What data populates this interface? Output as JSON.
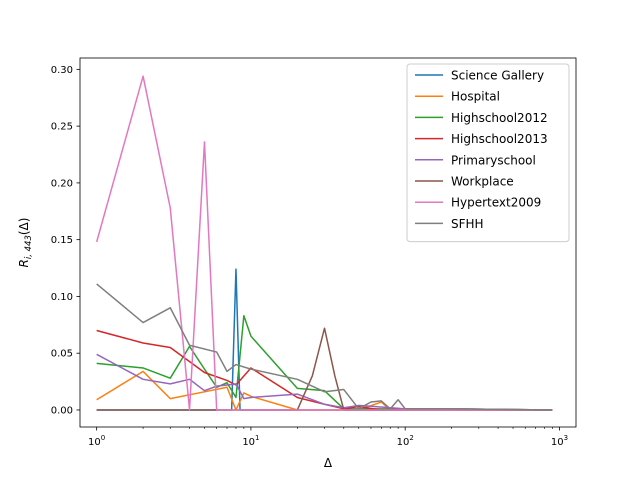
{
  "chart_data": {
    "type": "line",
    "title": "",
    "xlabel": "Δ",
    "ylabel": "R",
    "ylabel_subscript": "i, 443",
    "ylabel_suffix": "(Δ)",
    "xscale": "log",
    "xlim": [
      0.78,
      1280
    ],
    "ylim": [
      -0.015,
      0.31
    ],
    "grid": false,
    "legend_placement": "upper right",
    "x_ticks": [
      {
        "value": 1,
        "base": "10",
        "exp": "0"
      },
      {
        "value": 10,
        "base": "10",
        "exp": "1"
      },
      {
        "value": 100,
        "base": "10",
        "exp": "2"
      },
      {
        "value": 1000,
        "base": "10",
        "exp": "3"
      }
    ],
    "y_ticks": [
      {
        "value": 0.0,
        "label": "0.00"
      },
      {
        "value": 0.05,
        "label": "0.05"
      },
      {
        "value": 0.1,
        "label": "0.10"
      },
      {
        "value": 0.15,
        "label": "0.15"
      },
      {
        "value": 0.2,
        "label": "0.20"
      },
      {
        "value": 0.25,
        "label": "0.25"
      },
      {
        "value": 0.3,
        "label": "0.30"
      }
    ],
    "series": [
      {
        "name": "Science Gallery",
        "color": "#1f77b4",
        "x": [
          1,
          2,
          3,
          5,
          7,
          7.5,
          8,
          8.5,
          10,
          20,
          50,
          100,
          200,
          900
        ],
        "y": [
          0,
          0,
          0,
          0,
          0,
          0,
          0.124,
          0,
          0,
          0,
          0,
          0,
          0,
          0
        ]
      },
      {
        "name": "Hospital",
        "color": "#ff7f0e",
        "x": [
          1,
          2,
          3,
          5,
          7,
          8,
          9,
          10,
          20,
          50,
          70,
          80,
          100,
          200,
          900
        ],
        "y": [
          0.009,
          0.034,
          0.01,
          0.016,
          0.02,
          0.0,
          0.015,
          0.012,
          0.0,
          0.0,
          0.007,
          0.0,
          0.0,
          0.0,
          0.0
        ]
      },
      {
        "name": "Highschool2012",
        "color": "#2ca02c",
        "x": [
          1,
          2,
          3,
          4,
          5,
          6,
          7,
          8,
          9,
          10,
          20,
          30,
          40,
          50,
          100,
          200,
          900
        ],
        "y": [
          0.041,
          0.037,
          0.028,
          0.056,
          0.036,
          0.02,
          0.024,
          0.011,
          0.083,
          0.065,
          0.019,
          0.017,
          0.001,
          0.001,
          0.001,
          0.001,
          0.0
        ]
      },
      {
        "name": "Highschool2013",
        "color": "#d62728",
        "x": [
          1,
          2,
          3,
          5,
          7,
          8,
          10,
          20,
          30,
          40,
          50,
          70,
          100,
          200,
          900
        ],
        "y": [
          0.07,
          0.059,
          0.055,
          0.033,
          0.026,
          0.022,
          0.037,
          0.011,
          0.005,
          0.001,
          0.003,
          0.0,
          0.001,
          0.001,
          0.0
        ]
      },
      {
        "name": "Primaryschool",
        "color": "#9467bd",
        "x": [
          1,
          2,
          3,
          4,
          5,
          6,
          7,
          8,
          9,
          10,
          20,
          30,
          40,
          50,
          100,
          200,
          900
        ],
        "y": [
          0.049,
          0.027,
          0.023,
          0.027,
          0.017,
          0.021,
          0.022,
          0.023,
          0.01,
          0.011,
          0.014,
          0.005,
          0.002,
          0.004,
          0.001,
          0.001,
          0.0
        ]
      },
      {
        "name": "Workplace",
        "color": "#8c564b",
        "x": [
          1,
          2,
          3,
          5,
          10,
          20,
          25,
          30,
          35,
          40,
          50,
          100,
          200,
          900
        ],
        "y": [
          0,
          0,
          0,
          0,
          0,
          0,
          0.03,
          0.072,
          0.03,
          0,
          0,
          0,
          0,
          0
        ]
      },
      {
        "name": "Hypertext2009",
        "color": "#e377c2",
        "x": [
          1,
          2,
          3,
          4,
          5,
          6,
          7,
          10,
          20,
          50,
          100,
          900
        ],
        "y": [
          0.148,
          0.294,
          0.178,
          0.0,
          0.236,
          0.0,
          0.0,
          0.0,
          0.0,
          0.0,
          0.0,
          0.0
        ]
      },
      {
        "name": "SFHH",
        "color": "#7f7f7f",
        "x": [
          1,
          2,
          3,
          4,
          6,
          7,
          8,
          10,
          20,
          30,
          40,
          50,
          60,
          70,
          80,
          90,
          100,
          200,
          900
        ],
        "y": [
          0.111,
          0.077,
          0.09,
          0.057,
          0.051,
          0.034,
          0.04,
          0.036,
          0.027,
          0.016,
          0.018,
          0.001,
          0.007,
          0.008,
          0.001,
          0.009,
          0.001,
          0.001,
          0.0
        ]
      }
    ]
  }
}
